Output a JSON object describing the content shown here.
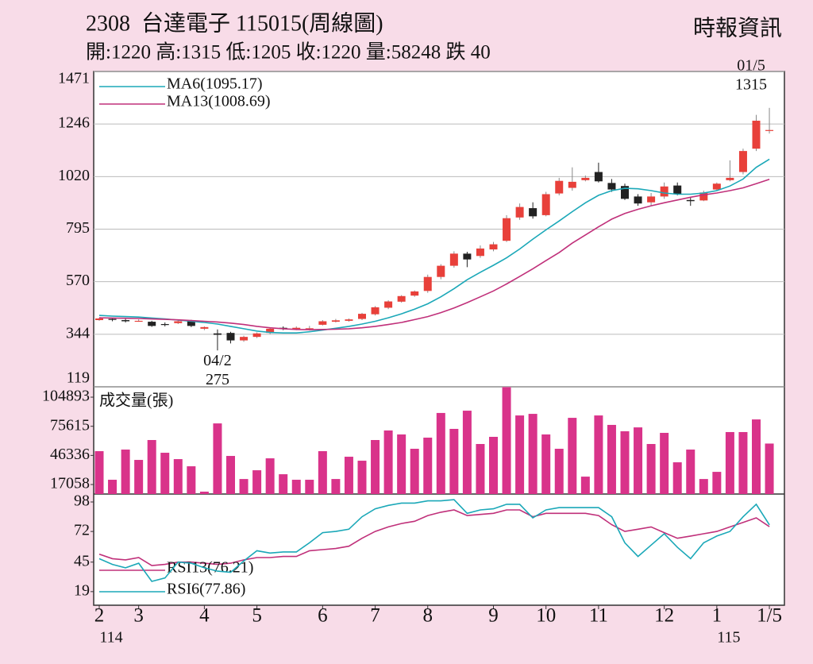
{
  "header": {
    "title": "2308  台達電子 115015(周線圖)",
    "source": "時報資訊",
    "summary": "開:1220 高:1315 低:1205 收:1220 量:58248 跌 40"
  },
  "chart_data": [
    {
      "type": "candlestick",
      "open": [
        405,
        410,
        405,
        398,
        398,
        388,
        392,
        402,
        368,
        348,
        350,
        318,
        333,
        350,
        372,
        366,
        368,
        385,
        398,
        402,
        410,
        430,
        458,
        484,
        510,
        530,
        590,
        638,
        690,
        680,
        708,
        745,
        845,
        885,
        855,
        948,
        972,
        1005,
        1040,
        993,
        980,
        935,
        910,
        935,
        982,
        920,
        918,
        965,
        1005,
        1040,
        1140,
        1220
      ],
      "high": [
        415,
        413,
        410,
        408,
        402,
        395,
        404,
        406,
        378,
        365,
        355,
        338,
        352,
        372,
        378,
        378,
        380,
        405,
        410,
        412,
        436,
        465,
        490,
        512,
        532,
        600,
        645,
        700,
        698,
        725,
        740,
        855,
        905,
        910,
        955,
        1015,
        1060,
        1025,
        1080,
        1010,
        990,
        945,
        950,
        995,
        995,
        930,
        960,
        995,
        1090,
        1140,
        1285,
        1315
      ],
      "low": [
        402,
        400,
        395,
        398,
        376,
        378,
        388,
        375,
        362,
        275,
        305,
        312,
        328,
        345,
        362,
        362,
        360,
        382,
        395,
        398,
        405,
        425,
        452,
        480,
        505,
        522,
        580,
        630,
        632,
        672,
        700,
        740,
        835,
        840,
        850,
        940,
        960,
        1000,
        995,
        955,
        920,
        895,
        895,
        925,
        940,
        895,
        915,
        960,
        1000,
        1030,
        1130,
        1205
      ],
      "close": [
        412,
        406,
        400,
        402,
        380,
        385,
        400,
        380,
        375,
        342,
        318,
        333,
        348,
        368,
        368,
        372,
        370,
        400,
        404,
        408,
        432,
        460,
        485,
        508,
        528,
        590,
        638,
        690,
        665,
        712,
        730,
        842,
        890,
        850,
        945,
        1002,
        998,
        1015,
        1000,
        965,
        925,
        905,
        935,
        978,
        945,
        915,
        952,
        990,
        1015,
        1130,
        1260,
        1220
      ],
      "up_color": "#e8403a",
      "down_color": "#222222",
      "series": [
        {
          "name": "MA6(1095.17)",
          "color": "#1ba8b8",
          "values": [
            425,
            422,
            420,
            418,
            414,
            410,
            405,
            400,
            395,
            388,
            378,
            368,
            358,
            352,
            350,
            350,
            355,
            362,
            370,
            378,
            388,
            400,
            415,
            432,
            452,
            475,
            505,
            540,
            578,
            610,
            640,
            672,
            710,
            752,
            792,
            830,
            870,
            908,
            940,
            960,
            970,
            968,
            960,
            950,
            945,
            945,
            950,
            960,
            980,
            1010,
            1060,
            1095.17
          ]
        },
        {
          "name": "MA13(1008.69)",
          "color": "#c0307a",
          "values": [
            415,
            414,
            413,
            412,
            410,
            408,
            406,
            403,
            400,
            397,
            392,
            386,
            378,
            372,
            368,
            365,
            364,
            365,
            366,
            368,
            372,
            378,
            386,
            395,
            407,
            420,
            437,
            457,
            480,
            505,
            530,
            560,
            592,
            625,
            660,
            695,
            735,
            770,
            805,
            838,
            862,
            880,
            895,
            908,
            920,
            932,
            942,
            950,
            960,
            972,
            990,
            1008.69
          ]
        }
      ],
      "annotations": [
        {
          "date": "01/5",
          "value": 1315
        },
        {
          "date": "04/2",
          "value": 275
        }
      ],
      "ylim": [
        119,
        1471
      ],
      "yticks": [
        119,
        344,
        570,
        795,
        1020,
        1246,
        1471
      ],
      "grid": true
    },
    {
      "type": "bar",
      "title": "成交量(張)",
      "color": "#d9338a",
      "values": [
        50600,
        21850,
        52200,
        41800,
        61800,
        49000,
        42600,
        35400,
        9900,
        78500,
        45800,
        22600,
        31400,
        43400,
        27400,
        21850,
        21850,
        50600,
        22600,
        45000,
        41000,
        61800,
        71400,
        67400,
        53000,
        64200,
        89000,
        73000,
        91300,
        57800,
        65000,
        115000,
        86500,
        88100,
        67400,
        53000,
        84100,
        25000,
        86500,
        77000,
        70600,
        74500,
        57800,
        69000,
        39400,
        52200,
        22600,
        29800,
        69800,
        69800,
        82500,
        58248
      ],
      "ylim": [
        7500,
        115300
      ],
      "yticks": [
        17058,
        46336,
        75615,
        104893
      ]
    },
    {
      "type": "line",
      "categories": [
        "2",
        null,
        null,
        "3",
        null,
        null,
        null,
        null,
        "4",
        null,
        null,
        null,
        "5",
        null,
        null,
        null,
        null,
        "6",
        null,
        null,
        null,
        "7",
        null,
        null,
        null,
        "8",
        null,
        null,
        null,
        null,
        "9",
        null,
        null,
        null,
        "10",
        null,
        null,
        null,
        "11",
        null,
        null,
        null,
        null,
        "12",
        null,
        null,
        null,
        "1",
        null,
        null,
        null,
        "1/5"
      ],
      "year_labels": [
        "114",
        null,
        null,
        null,
        null,
        null,
        null,
        null,
        null,
        null,
        null,
        null,
        null,
        null,
        null,
        null,
        null,
        null,
        null,
        null,
        null,
        null,
        null,
        null,
        null,
        null,
        null,
        null,
        null,
        null,
        null,
        null,
        null,
        null,
        null,
        null,
        null,
        null,
        null,
        null,
        null,
        null,
        null,
        null,
        null,
        null,
        null,
        "115",
        null,
        null,
        null,
        null
      ],
      "series": [
        {
          "name": "RSI13(76.21)",
          "color": "#c0307a",
          "values": [
            52,
            48,
            47,
            49,
            42,
            43,
            45,
            45,
            44,
            43,
            44,
            47,
            49,
            49,
            50,
            50,
            55,
            56,
            57,
            59,
            66,
            72,
            76,
            79,
            81,
            86,
            89,
            91,
            86,
            87,
            88,
            91,
            91,
            85,
            88,
            88,
            88,
            88,
            86,
            78,
            72,
            74,
            76,
            71,
            66,
            68,
            70,
            72,
            76,
            80,
            84,
            76.21
          ]
        },
        {
          "name": "RSI6(77.86)",
          "color": "#1ba8b8",
          "values": [
            48,
            43,
            40,
            44,
            28,
            31,
            45,
            44,
            40,
            37,
            36,
            46,
            55,
            53,
            54,
            54,
            62,
            71,
            72,
            74,
            85,
            92,
            95,
            97,
            97,
            99,
            99,
            100,
            88,
            91,
            92,
            96,
            96,
            84,
            91,
            93,
            93,
            93,
            93,
            85,
            62,
            50,
            60,
            70,
            58,
            48,
            62,
            68,
            72,
            85,
            96,
            77.86
          ]
        }
      ],
      "ylim": [
        7,
        105
      ],
      "yticks": [
        19,
        45,
        72,
        98
      ]
    }
  ]
}
